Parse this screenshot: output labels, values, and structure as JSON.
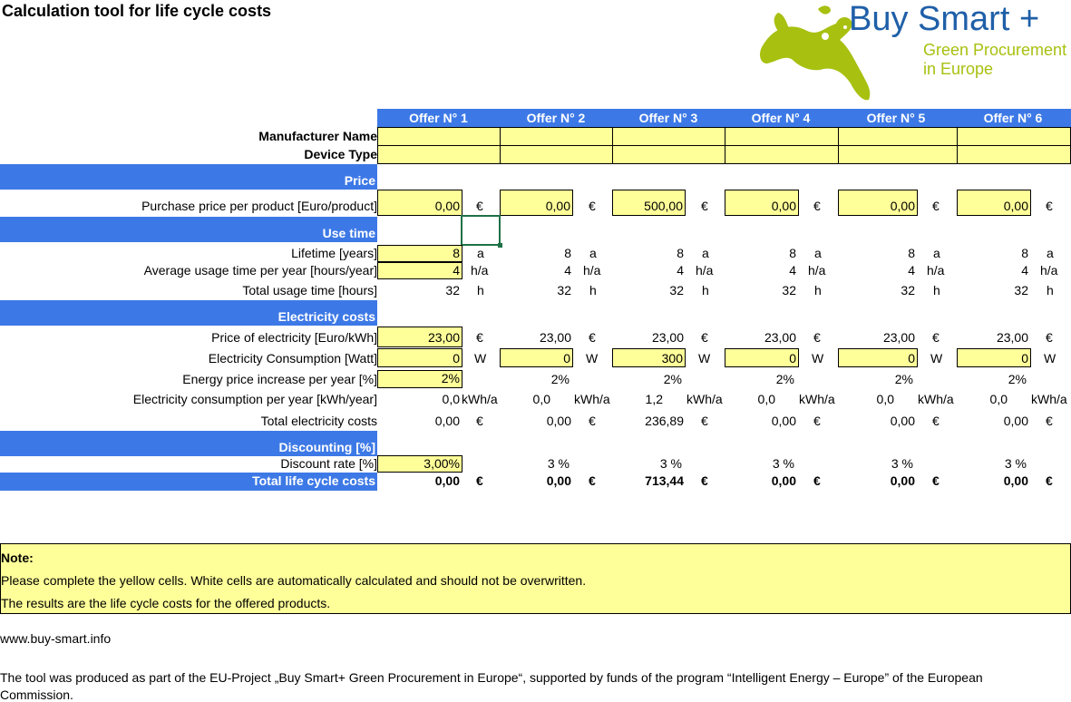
{
  "title": "Calculation tool for life cycle costs",
  "logo": {
    "brand": "Buy Smart +",
    "line1": "Green Procurement",
    "line2": "in Europe",
    "color_brand": "#1f5fa8",
    "color_green": "#a8c010"
  },
  "offers": [
    "Offer N° 1",
    "Offer N° 2",
    "Offer N° 3",
    "Offer N° 4",
    "Offer N° 5",
    "Offer N° 6"
  ],
  "labels": {
    "manufacturer": "Manufacturer Name",
    "device_type": "Device Type",
    "price_section": "Price",
    "purchase_price": "Purchase price per product [Euro/product]",
    "use_time_section": "Use time",
    "lifetime": "Lifetime [years]",
    "usage_per_year": "Average usage time per year [hours/year]",
    "total_usage": "Total usage time [hours]",
    "electricity_section": "Electricity costs",
    "price_electricity": "Price of electricity [Euro/kWh]",
    "consumption": "Electricity Consumption [Watt]",
    "price_increase": "Energy price increase per year [%]",
    "consumption_year": "Electricity consumption per year [kWh/year]",
    "total_electricity": "Total electricity costs",
    "discount_section": "Discounting [%]",
    "discount_rate": "Discount rate [%]",
    "total_lcc": "Total life cycle costs"
  },
  "values": {
    "purchase": [
      "0,00",
      "0,00",
      "500,00",
      "0,00",
      "0,00",
      "0,00"
    ],
    "lifetime": [
      "8",
      "8",
      "8",
      "8",
      "8",
      "8"
    ],
    "usage": [
      "4",
      "4",
      "4",
      "4",
      "4",
      "4"
    ],
    "total_usage": [
      "32",
      "32",
      "32",
      "32",
      "32",
      "32"
    ],
    "elec_price": [
      "23,00",
      "23,00",
      "23,00",
      "23,00",
      "23,00",
      "23,00"
    ],
    "consumption": [
      "0",
      "0",
      "300",
      "0",
      "0",
      "0"
    ],
    "increase": [
      "2%",
      "2%",
      "2%",
      "2%",
      "2%",
      "2%"
    ],
    "kwh_year": [
      "0,0",
      "0,0",
      "1,2",
      "0,0",
      "0,0",
      "0,0"
    ],
    "total_elec": [
      "0,00",
      "0,00",
      "236,89",
      "0,00",
      "0,00",
      "0,00"
    ],
    "discount": [
      "3,00%",
      "3 %",
      "3 %",
      "3 %",
      "3 %",
      "3 %"
    ],
    "total_lcc": [
      "0,00",
      "0,00",
      "713,44",
      "0,00",
      "0,00",
      "0,00"
    ]
  },
  "units": {
    "euro": "€",
    "years": "a",
    "hours_year": "h/a",
    "hours": "h",
    "watt": "W",
    "kwh_year": "kWh/a"
  },
  "note": {
    "heading": "Note:",
    "line1": "Please complete the yellow cells. White cells are automatically calculated and should not be overwritten.",
    "line2": "The results are the life cycle costs for the offered products."
  },
  "website": "www.buy-smart.info",
  "footer1": "The tool was produced as part of the EU-Project „Buy Smart+ Green Procurement in Europe“, supported by funds of the program “Intelligent Energy – Europe” of the European",
  "footer2": "Commission.",
  "colors": {
    "header_blue": "#3d79e6",
    "input_yellow": "#ffff99"
  }
}
